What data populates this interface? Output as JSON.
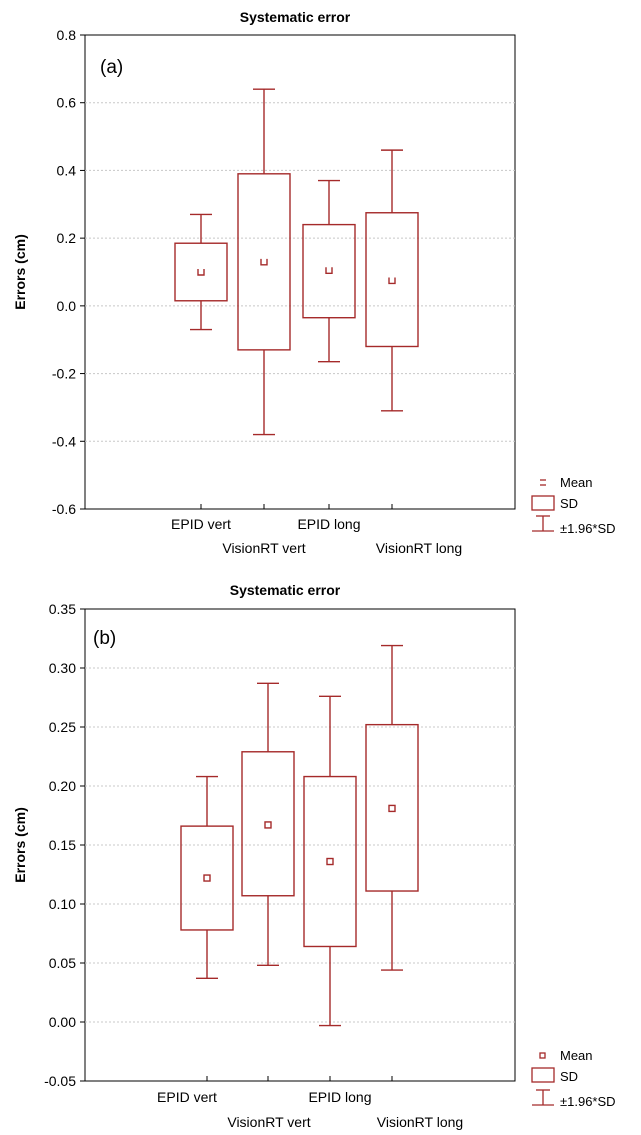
{
  "chart_data": [
    {
      "type": "box",
      "panel_label": "(a)",
      "title": "Systematic error",
      "ylabel": "Errors (cm)",
      "xlabel": "",
      "ylim": [
        -0.6,
        0.8
      ],
      "yticks": [
        "0.8",
        "0.6",
        "0.4",
        "0.2",
        "0.0",
        "-0.2",
        "-0.4",
        "-0.6"
      ],
      "ytick_values": [
        0.8,
        0.6,
        0.4,
        0.2,
        0.0,
        -0.2,
        -0.4,
        -0.6
      ],
      "grid": true,
      "color": "#a52a2a",
      "categories": [
        "EPID vert",
        "VisionRT vert",
        "EPID long",
        "VisionRT long"
      ],
      "series": [
        {
          "mean": 0.1,
          "sd_low": 0.015,
          "sd_high": 0.185,
          "ci_low": -0.07,
          "ci_high": 0.27
        },
        {
          "mean": 0.13,
          "sd_low": -0.13,
          "sd_high": 0.39,
          "ci_low": -0.38,
          "ci_high": 0.64
        },
        {
          "mean": 0.105,
          "sd_low": -0.035,
          "sd_high": 0.24,
          "ci_low": -0.165,
          "ci_high": 0.37
        },
        {
          "mean": 0.075,
          "sd_low": -0.12,
          "sd_high": 0.275,
          "ci_low": -0.31,
          "ci_high": 0.46
        }
      ],
      "legend": {
        "mean": "Mean",
        "sd": "SD",
        "ci": "±1.96*SD"
      }
    },
    {
      "type": "box",
      "panel_label": "(b)",
      "title": "Systematic error",
      "ylabel": "Errors (cm)",
      "xlabel": "",
      "ylim": [
        -0.05,
        0.35
      ],
      "yticks": [
        "0.35",
        "0.30",
        "0.25",
        "0.20",
        "0.15",
        "0.10",
        "0.05",
        "0.00",
        "-0.05"
      ],
      "ytick_values": [
        0.35,
        0.3,
        0.25,
        0.2,
        0.15,
        0.1,
        0.05,
        0.0,
        -0.05
      ],
      "grid": true,
      "color": "#a52a2a",
      "categories": [
        "EPID vert",
        "VisionRT vert",
        "EPID long",
        "VisionRT long"
      ],
      "series": [
        {
          "mean": 0.122,
          "sd_low": 0.078,
          "sd_high": 0.166,
          "ci_low": 0.037,
          "ci_high": 0.208
        },
        {
          "mean": 0.167,
          "sd_low": 0.107,
          "sd_high": 0.229,
          "ci_low": 0.048,
          "ci_high": 0.287
        },
        {
          "mean": 0.136,
          "sd_low": 0.064,
          "sd_high": 0.208,
          "ci_low": -0.003,
          "ci_high": 0.276
        },
        {
          "mean": 0.181,
          "sd_low": 0.111,
          "sd_high": 0.252,
          "ci_low": 0.044,
          "ci_high": 0.319
        }
      ],
      "legend": {
        "mean": "Mean",
        "sd": "SD",
        "ci": "±1.96*SD"
      }
    }
  ]
}
